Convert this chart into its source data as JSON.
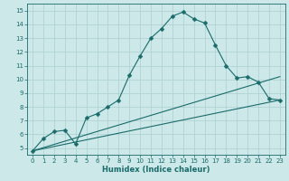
{
  "xlabel": "Humidex (Indice chaleur)",
  "bg_color": "#cce8e8",
  "line_color": "#1a6b6b",
  "grid_color": "#aacfcf",
  "xlim": [
    -0.5,
    23.5
  ],
  "ylim": [
    4.5,
    15.5
  ],
  "xticks": [
    0,
    1,
    2,
    3,
    4,
    5,
    6,
    7,
    8,
    9,
    10,
    11,
    12,
    13,
    14,
    15,
    16,
    17,
    18,
    19,
    20,
    21,
    22,
    23
  ],
  "yticks": [
    5,
    6,
    7,
    8,
    9,
    10,
    11,
    12,
    13,
    14,
    15
  ],
  "series1_x": [
    0,
    1,
    2,
    3,
    4,
    5,
    6,
    7,
    8,
    9,
    10,
    11,
    12,
    13,
    14,
    15,
    16,
    17,
    18,
    19,
    20,
    21,
    22,
    23
  ],
  "series1_y": [
    4.8,
    5.7,
    6.2,
    6.3,
    5.3,
    7.2,
    7.5,
    8.0,
    8.5,
    10.3,
    11.7,
    13.0,
    13.7,
    14.6,
    14.9,
    14.4,
    14.1,
    12.5,
    11.0,
    10.1,
    10.2,
    9.8,
    8.6,
    8.5
  ],
  "series2_x": [
    0,
    23
  ],
  "series2_y": [
    4.8,
    10.2
  ],
  "series3_x": [
    0,
    23
  ],
  "series3_y": [
    4.8,
    8.5
  ],
  "marker": "D",
  "markersize": 2.5,
  "xlabel_fontsize": 6,
  "tick_fontsize": 5
}
